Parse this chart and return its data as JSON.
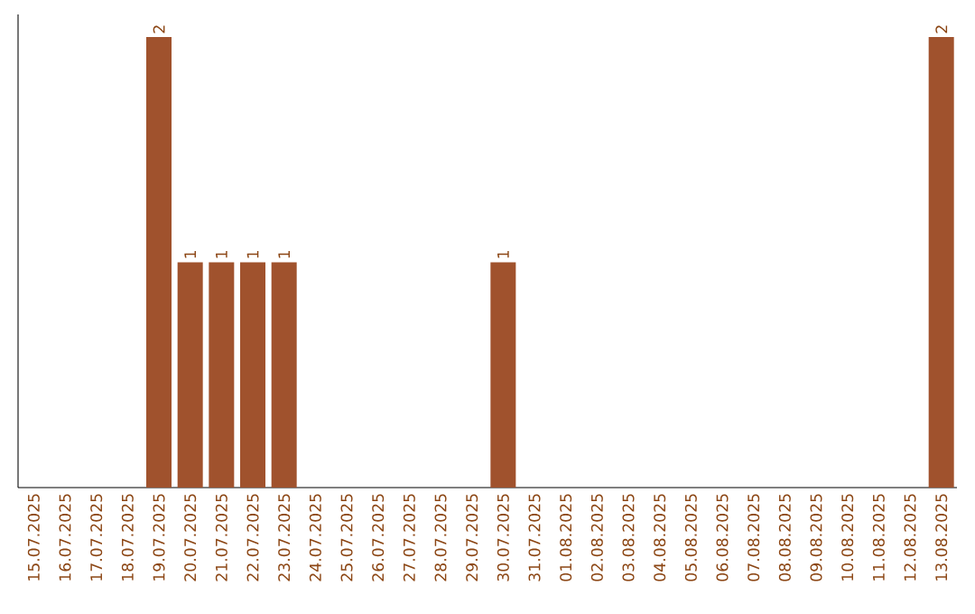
{
  "chart_data": {
    "type": "bar",
    "color": "#a0522d",
    "categories": [
      "15.07.2025",
      "16.07.2025",
      "17.07.2025",
      "18.07.2025",
      "19.07.2025",
      "20.07.2025",
      "21.07.2025",
      "22.07.2025",
      "23.07.2025",
      "24.07.2025",
      "25.07.2025",
      "26.07.2025",
      "27.07.2025",
      "28.07.2025",
      "29.07.2025",
      "30.07.2025",
      "31.07.2025",
      "01.08.2025",
      "02.08.2025",
      "03.08.2025",
      "04.08.2025",
      "05.08.2025",
      "06.08.2025",
      "07.08.2025",
      "08.08.2025",
      "09.08.2025",
      "10.08.2025",
      "11.08.2025",
      "12.08.2025",
      "13.08.2025"
    ],
    "values": [
      0,
      0,
      0,
      0,
      2,
      1,
      1,
      1,
      1,
      0,
      0,
      0,
      0,
      0,
      0,
      1,
      0,
      0,
      0,
      0,
      0,
      0,
      0,
      0,
      0,
      0,
      0,
      0,
      0,
      2
    ],
    "value_labels": [
      null,
      null,
      null,
      null,
      "2",
      "1",
      "1",
      "1",
      "1",
      null,
      null,
      null,
      null,
      null,
      null,
      "1",
      null,
      null,
      null,
      null,
      null,
      null,
      null,
      null,
      null,
      null,
      null,
      null,
      null,
      "2"
    ],
    "data_labels": false
  }
}
